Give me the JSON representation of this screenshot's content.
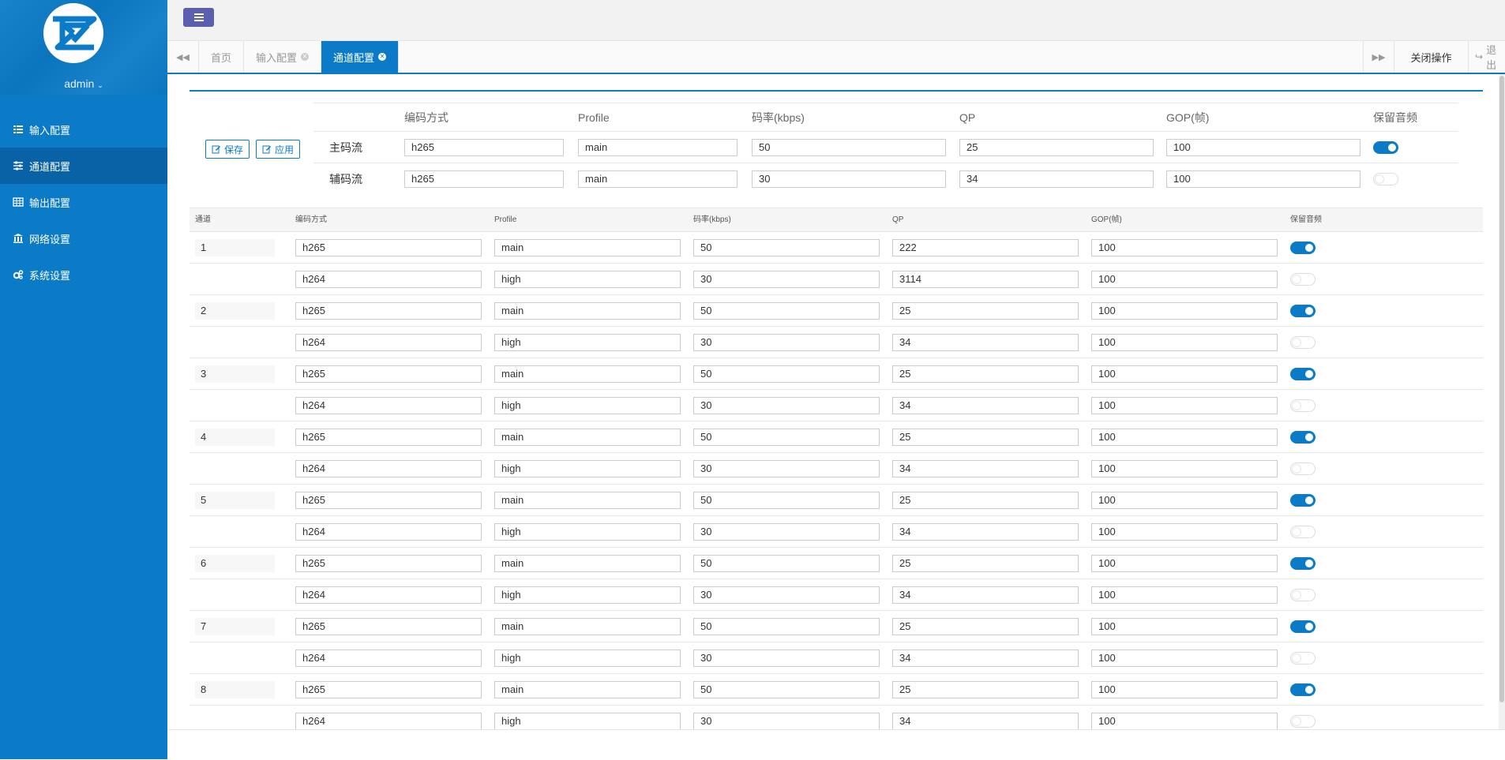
{
  "app": {
    "user": "admin"
  },
  "sidebar": {
    "items": [
      {
        "label": "输入配置",
        "icon": "list-icon"
      },
      {
        "label": "通道配置",
        "icon": "sliders-icon"
      },
      {
        "label": "输出配置",
        "icon": "table-icon"
      },
      {
        "label": "网络设置",
        "icon": "bank-icon"
      },
      {
        "label": "系统设置",
        "icon": "gears-icon"
      }
    ]
  },
  "tabs": [
    {
      "label": "首页"
    },
    {
      "label": "输入配置"
    },
    {
      "label": "通道配置"
    }
  ],
  "tabbar": {
    "close_ops": "关闭操作",
    "logout": "退出"
  },
  "toolbar": {
    "save_label": "保存",
    "apply_label": "应用"
  },
  "global": {
    "headers": [
      "编码方式",
      "Profile",
      "码率(kbps)",
      "QP",
      "GOP(帧)",
      "保留音频"
    ],
    "rows": [
      {
        "label": "主码流",
        "codec": "h265",
        "profile": "main",
        "bitrate": "50",
        "qp": "25",
        "gop": "100",
        "audio": true
      },
      {
        "label": "辅码流",
        "codec": "h265",
        "profile": "main",
        "bitrate": "30",
        "qp": "34",
        "gop": "100",
        "audio": false
      }
    ]
  },
  "channels": {
    "headers": [
      "通道",
      "编码方式",
      "Profile",
      "码率(kbps)",
      "QP",
      "GOP(帧)",
      "保留音频"
    ],
    "rows": [
      {
        "num": "1",
        "codec": "h265",
        "profile": "main",
        "bitrate": "50",
        "qp": "222",
        "gop": "100",
        "audio": true
      },
      {
        "num": "",
        "codec": "h264",
        "profile": "high",
        "bitrate": "30",
        "qp": "3114",
        "gop": "100",
        "audio": false
      },
      {
        "num": "2",
        "codec": "h265",
        "profile": "main",
        "bitrate": "50",
        "qp": "25",
        "gop": "100",
        "audio": true
      },
      {
        "num": "",
        "codec": "h264",
        "profile": "high",
        "bitrate": "30",
        "qp": "34",
        "gop": "100",
        "audio": false
      },
      {
        "num": "3",
        "codec": "h265",
        "profile": "main",
        "bitrate": "50",
        "qp": "25",
        "gop": "100",
        "audio": true
      },
      {
        "num": "",
        "codec": "h264",
        "profile": "high",
        "bitrate": "30",
        "qp": "34",
        "gop": "100",
        "audio": false
      },
      {
        "num": "4",
        "codec": "h265",
        "profile": "main",
        "bitrate": "50",
        "qp": "25",
        "gop": "100",
        "audio": true
      },
      {
        "num": "",
        "codec": "h264",
        "profile": "high",
        "bitrate": "30",
        "qp": "34",
        "gop": "100",
        "audio": false
      },
      {
        "num": "5",
        "codec": "h265",
        "profile": "main",
        "bitrate": "50",
        "qp": "25",
        "gop": "100",
        "audio": true
      },
      {
        "num": "",
        "codec": "h264",
        "profile": "high",
        "bitrate": "30",
        "qp": "34",
        "gop": "100",
        "audio": false
      },
      {
        "num": "6",
        "codec": "h265",
        "profile": "main",
        "bitrate": "50",
        "qp": "25",
        "gop": "100",
        "audio": true
      },
      {
        "num": "",
        "codec": "h264",
        "profile": "high",
        "bitrate": "30",
        "qp": "34",
        "gop": "100",
        "audio": false
      },
      {
        "num": "7",
        "codec": "h265",
        "profile": "main",
        "bitrate": "50",
        "qp": "25",
        "gop": "100",
        "audio": true
      },
      {
        "num": "",
        "codec": "h264",
        "profile": "high",
        "bitrate": "30",
        "qp": "34",
        "gop": "100",
        "audio": false
      },
      {
        "num": "8",
        "codec": "h265",
        "profile": "main",
        "bitrate": "50",
        "qp": "25",
        "gop": "100",
        "audio": true
      },
      {
        "num": "",
        "codec": "h264",
        "profile": "high",
        "bitrate": "30",
        "qp": "34",
        "gop": "100",
        "audio": false
      }
    ]
  },
  "colors": {
    "brand": "#0b7bc7",
    "sidebar_active": "#0962a5",
    "menu_button": "#5a5fae"
  }
}
